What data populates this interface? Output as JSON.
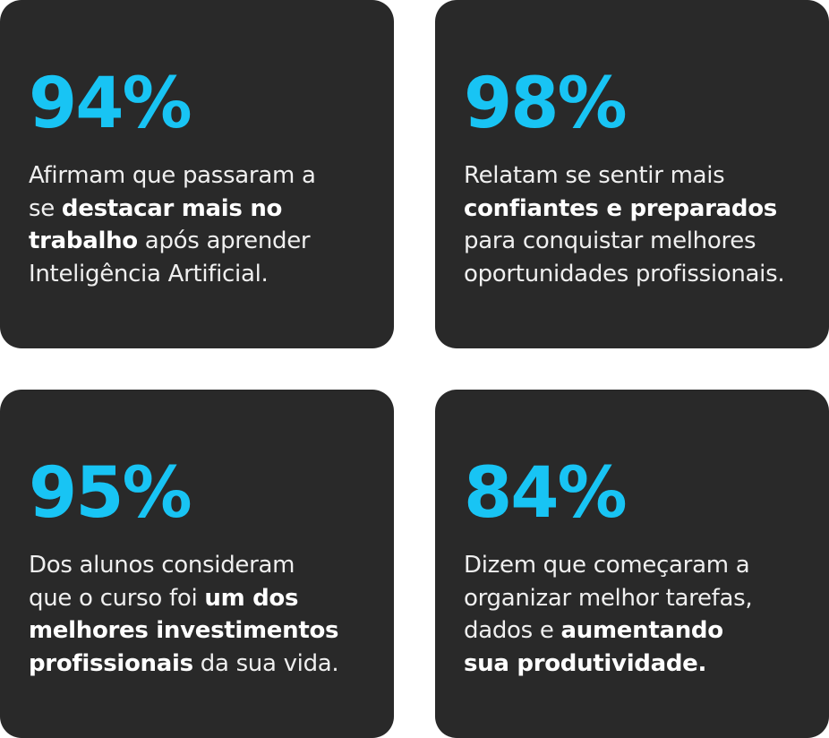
{
  "cards": [
    {
      "stat": "94%",
      "lines": [
        [
          {
            "text": "Afirmam que passaram a",
            "bold": false
          }
        ],
        [
          {
            "text": "se ",
            "bold": false
          },
          {
            "text": "destacar mais no",
            "bold": true
          }
        ],
        [
          {
            "text": "trabalho",
            "bold": true
          },
          {
            "text": " após aprender",
            "bold": false
          }
        ],
        [
          {
            "text": "Inteligência Artificial.",
            "bold": false
          }
        ]
      ]
    },
    {
      "stat": "98%",
      "lines": [
        [
          {
            "text": "Relatam se sentir mais",
            "bold": false
          }
        ],
        [
          {
            "text": "confiantes e preparados",
            "bold": true
          }
        ],
        [
          {
            "text": "para conquistar melhores",
            "bold": false
          }
        ],
        [
          {
            "text": "oportunidades profissionais.",
            "bold": false
          }
        ]
      ]
    },
    {
      "stat": "95%",
      "lines": [
        [
          {
            "text": "Dos alunos consideram",
            "bold": false
          }
        ],
        [
          {
            "text": "que o curso foi ",
            "bold": false
          },
          {
            "text": "um dos",
            "bold": true
          }
        ],
        [
          {
            "text": "melhores investimentos",
            "bold": true
          }
        ],
        [
          {
            "text": "profissionais",
            "bold": true
          },
          {
            "text": " da sua vida.",
            "bold": false
          }
        ]
      ]
    },
    {
      "stat": "84%",
      "lines": [
        [
          {
            "text": "Dizem que começaram a",
            "bold": false
          }
        ],
        [
          {
            "text": "organizar melhor tarefas,",
            "bold": false
          }
        ],
        [
          {
            "text": "dados e ",
            "bold": false
          },
          {
            "text": "aumentando",
            "bold": true
          }
        ],
        [
          {
            "text": "sua produtividade.",
            "bold": true
          }
        ]
      ]
    }
  ]
}
